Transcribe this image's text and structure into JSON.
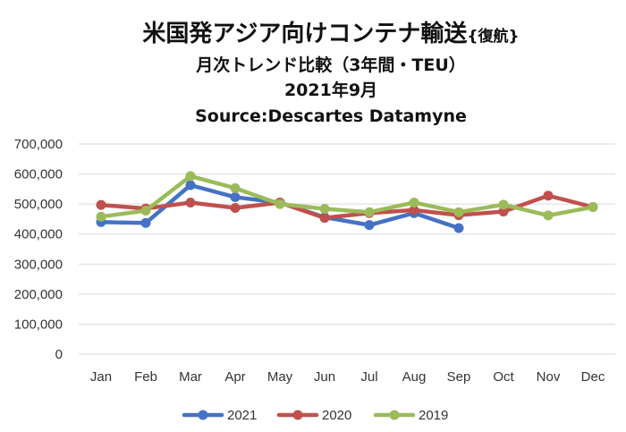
{
  "chart_data": {
    "type": "line",
    "title": "米国発アジア向けコンテナ輸送",
    "title_suffix": "{復航}",
    "subtitle": "月次トレンド比較（3年間・TEU）",
    "subtitle2": "2021年9月",
    "source": "Source:Descartes Datamyne",
    "categories": [
      "Jan",
      "Feb",
      "Mar",
      "Apr",
      "May",
      "Jun",
      "Jul",
      "Aug",
      "Sep",
      "Oct",
      "Nov",
      "Dec"
    ],
    "ylim": [
      0,
      700000
    ],
    "yticks": [
      0,
      100000,
      200000,
      300000,
      400000,
      500000,
      600000,
      700000
    ],
    "ytick_labels": [
      "0",
      "100,000",
      "200,000",
      "300,000",
      "400,000",
      "500,000",
      "600,000",
      "700,000"
    ],
    "grid": true,
    "legend_position": "bottom",
    "series": [
      {
        "name": "2021",
        "color": "#4472c4",
        "values": [
          440000,
          437000,
          563000,
          523000,
          505000,
          456000,
          430000,
          470000,
          420000,
          null,
          null,
          null
        ]
      },
      {
        "name": "2020",
        "color": "#c0504d",
        "values": [
          497000,
          485000,
          505000,
          487000,
          505000,
          454000,
          470000,
          480000,
          463000,
          475000,
          528000,
          490000
        ]
      },
      {
        "name": "2019",
        "color": "#9bbb59",
        "values": [
          458000,
          478000,
          593000,
          553000,
          500000,
          484000,
          473000,
          505000,
          473000,
          498000,
          462000,
          490000
        ]
      }
    ]
  }
}
